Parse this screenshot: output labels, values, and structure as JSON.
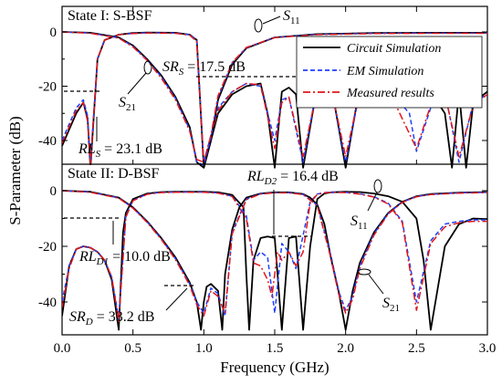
{
  "chart_data": {
    "type": "line",
    "xlabel": "Frequency (GHz)",
    "ylabel": "S-Parameter (dB)",
    "xlim": [
      0.0,
      3.0
    ],
    "xticks": [
      "0.0",
      "0.5",
      "1.0",
      "1.5",
      "2.0",
      "2.5",
      "3.0"
    ],
    "legend": {
      "placement": "top-right of upper panel",
      "entries": [
        {
          "label": "Circuit Simulation",
          "color": "#000000",
          "style": "solid"
        },
        {
          "label": "EM Simulation",
          "color": "#1f3fff",
          "style": "dashed"
        },
        {
          "label": "Measured results",
          "color": "#e0161b",
          "style": "dashdot"
        }
      ]
    },
    "panels": [
      {
        "title": "State I: S-BSF",
        "ylim": [
          -50,
          5
        ],
        "yticks": [
          "0",
          "-20",
          "-40"
        ],
        "annotations": [
          {
            "sym": "S",
            "sub": "11",
            "suffix": ""
          },
          {
            "sym": "S",
            "sub": "21",
            "suffix": ""
          },
          {
            "sym": "SR",
            "sub": "S",
            "suffix": " = 17.5 dB"
          },
          {
            "sym": "RL",
            "sub": "S",
            "suffix": " = 23.1 dB"
          }
        ],
        "series": [
          {
            "curve": "S11",
            "name": "Circuit Simulation",
            "x": [
              0.0,
              0.1,
              0.15,
              0.18,
              0.2,
              0.25,
              0.3,
              0.4,
              0.5,
              0.6,
              0.8,
              0.9,
              0.95,
              1.0,
              1.1,
              1.2,
              1.3,
              1.4,
              1.45,
              1.5,
              1.55,
              1.6,
              1.65,
              1.7,
              1.8,
              1.9,
              1.95,
              2.0,
              2.1,
              2.3,
              2.5,
              2.6,
              2.7,
              2.75,
              2.8,
              2.85,
              2.9,
              3.0
            ],
            "y": [
              -42,
              -30,
              -26,
              -32,
              -50,
              -10,
              -3,
              -1,
              -0.4,
              -0.2,
              -0.3,
              -1,
              -3,
              -50,
              -30,
              -23,
              -20,
              -19,
              -30,
              -50,
              -22,
              -20.5,
              -23,
              -50,
              -20,
              -20,
              -35,
              -50,
              -20,
              -20,
              -21,
              -22,
              -30,
              -50,
              -22,
              -50,
              -26,
              -22
            ]
          },
          {
            "curve": "S11",
            "name": "EM Simulation",
            "x": [
              0.0,
              0.1,
              0.15,
              0.18,
              0.2,
              0.25,
              0.3,
              0.4,
              0.5,
              0.6,
              0.8,
              0.9,
              0.95,
              1.0,
              1.1,
              1.2,
              1.3,
              1.4,
              1.5,
              1.55,
              1.6,
              1.7,
              1.8,
              1.9,
              2.0,
              2.1,
              2.3,
              2.45,
              2.5,
              2.6,
              2.7,
              2.8,
              2.9,
              3.0
            ],
            "y": [
              -40,
              -28,
              -25,
              -31,
              -48,
              -10,
              -3,
              -1,
              -0.5,
              -0.3,
              -0.4,
              -1,
              -3,
              -48,
              -28,
              -22,
              -19,
              -20,
              -40,
              -25,
              -24,
              -48,
              -20,
              -21,
              -48,
              -22,
              -21,
              -30,
              -44,
              -28,
              -22,
              -48,
              -26,
              -23
            ]
          },
          {
            "curve": "S11",
            "name": "Measured results",
            "x": [
              0.0,
              0.1,
              0.15,
              0.18,
              0.2,
              0.25,
              0.3,
              0.4,
              0.5,
              0.6,
              0.8,
              0.9,
              0.95,
              1.0,
              1.1,
              1.2,
              1.3,
              1.4,
              1.5,
              1.55,
              1.6,
              1.7,
              1.8,
              1.9,
              2.0,
              2.1,
              2.3,
              2.5,
              2.6,
              2.7,
              2.8,
              2.9,
              3.0
            ],
            "y": [
              -41,
              -29,
              -26,
              -33,
              -49,
              -10,
              -3,
              -1,
              -0.6,
              -0.4,
              -0.5,
              -1.2,
              -3.5,
              -49,
              -29,
              -22,
              -19,
              -19.5,
              -43,
              -26,
              -24,
              -46,
              -21,
              -21,
              -46,
              -22,
              -21,
              -43,
              -27,
              -23,
              -46,
              -27,
              -23
            ]
          },
          {
            "curve": "S21",
            "name": "Circuit Simulation",
            "x": [
              0.0,
              0.2,
              0.4,
              0.5,
              0.6,
              0.7,
              0.8,
              0.9,
              0.95,
              1.0,
              1.05,
              1.1,
              1.2,
              1.3,
              1.5,
              1.8,
              2.2,
              2.6,
              3.0
            ],
            "y": [
              0,
              -0.3,
              -2,
              -5,
              -10,
              -16,
              -24,
              -35,
              -48,
              -50,
              -40,
              -25,
              -12,
              -6,
              -2,
              -0.8,
              -0.4,
              -0.3,
              -0.3
            ]
          },
          {
            "curve": "S21",
            "name": "EM Simulation",
            "x": [
              0.0,
              0.2,
              0.4,
              0.5,
              0.6,
              0.7,
              0.8,
              0.9,
              0.95,
              1.0,
              1.05,
              1.1,
              1.2,
              1.3,
              1.5,
              1.8,
              2.2,
              2.6,
              3.0
            ],
            "y": [
              0,
              -0.4,
              -2.2,
              -5.3,
              -10.3,
              -16.5,
              -24.5,
              -36,
              -48,
              -49,
              -39,
              -24,
              -11.5,
              -5.8,
              -2,
              -0.9,
              -0.5,
              -0.4,
              -0.4
            ]
          },
          {
            "curve": "S21",
            "name": "Measured results",
            "x": [
              0.0,
              0.2,
              0.4,
              0.5,
              0.6,
              0.7,
              0.8,
              0.9,
              0.95,
              1.0,
              1.05,
              1.1,
              1.2,
              1.3,
              1.5,
              1.8,
              2.2,
              2.6,
              3.0
            ],
            "y": [
              0,
              -0.5,
              -2.3,
              -5.5,
              -10.5,
              -17,
              -25,
              -36.5,
              -47,
              -48,
              -38,
              -23.5,
              -11.3,
              -5.7,
              -2.1,
              -1,
              -0.6,
              -0.5,
              -0.5
            ]
          }
        ]
      },
      {
        "title": "State II: D-BSF",
        "ylim": [
          -50,
          5
        ],
        "yticks": [
          "0",
          "-20",
          "-40"
        ],
        "annotations": [
          {
            "sym": "RL",
            "sub": "D2",
            "suffix": " = 16.4 dB"
          },
          {
            "sym": "S",
            "sub": "11",
            "suffix": ""
          },
          {
            "sym": "RL",
            "sub": "D1",
            "suffix": " = 10.0 dB"
          },
          {
            "sym": "S",
            "sub": "21",
            "suffix": ""
          },
          {
            "sym": "SR",
            "sub": "D",
            "suffix": " = 33.2 dB"
          }
        ],
        "series": [
          {
            "curve": "S11",
            "name": "Circuit Simulation",
            "x": [
              0.0,
              0.05,
              0.1,
              0.15,
              0.2,
              0.25,
              0.3,
              0.35,
              0.4,
              0.43,
              0.45,
              0.5,
              0.6,
              0.7,
              0.8,
              0.9,
              1.0,
              1.1,
              1.2,
              1.28,
              1.3,
              1.32,
              1.35,
              1.4,
              1.45,
              1.5,
              1.55,
              1.6,
              1.65,
              1.7,
              1.75,
              1.8,
              1.85,
              1.9,
              2.0,
              2.1,
              2.2,
              2.3,
              2.4,
              2.5,
              2.55,
              2.6,
              2.7,
              2.8,
              2.9,
              3.0
            ],
            "y": [
              -45,
              -27,
              -21,
              -20,
              -20.5,
              -22,
              -25,
              -32,
              -50,
              -15,
              -8,
              -3,
              -1,
              -0.5,
              -0.4,
              -0.4,
              -0.4,
              -0.6,
              -1.5,
              -6,
              -30,
              -50,
              -25,
              -17,
              -16.5,
              -17,
              -50,
              -17,
              -16.5,
              -50,
              -20,
              -3,
              -1,
              -0.6,
              -0.4,
              -0.5,
              -1,
              -2,
              -4,
              -10,
              -25,
              -50,
              -20,
              -12,
              -10,
              -10.2
            ]
          },
          {
            "curve": "S11",
            "name": "EM Simulation",
            "x": [
              0.0,
              0.05,
              0.1,
              0.15,
              0.2,
              0.25,
              0.3,
              0.35,
              0.4,
              0.45,
              0.5,
              0.6,
              0.7,
              0.8,
              0.9,
              1.0,
              1.1,
              1.2,
              1.3,
              1.35,
              1.4,
              1.45,
              1.5,
              1.55,
              1.6,
              1.65,
              1.7,
              1.75,
              1.8,
              1.85,
              1.9,
              2.0,
              2.1,
              2.2,
              2.3,
              2.4,
              2.5,
              2.6,
              2.7,
              2.8,
              2.9,
              3.0
            ],
            "y": [
              -40,
              -27,
              -21,
              -20,
              -20.5,
              -22,
              -25,
              -31,
              -46,
              -9,
              -3.5,
              -1.2,
              -0.6,
              -0.5,
              -0.5,
              -0.5,
              -0.8,
              -2,
              -9,
              -25,
              -22,
              -24,
              -44,
              -19,
              -22,
              -28,
              -16,
              -4,
              -1.2,
              -0.7,
              -0.5,
              -0.6,
              -1.1,
              -2.2,
              -4.5,
              -11,
              -40,
              -18,
              -12,
              -11,
              -10.5,
              -10.5
            ]
          },
          {
            "curve": "S11",
            "name": "Measured results",
            "x": [
              0.0,
              0.05,
              0.1,
              0.15,
              0.2,
              0.25,
              0.3,
              0.35,
              0.4,
              0.45,
              0.5,
              0.6,
              0.7,
              0.8,
              0.9,
              1.0,
              1.1,
              1.2,
              1.3,
              1.35,
              1.4,
              1.45,
              1.48,
              1.52,
              1.55,
              1.6,
              1.65,
              1.7,
              1.75,
              1.8,
              1.85,
              1.9,
              2.0,
              2.1,
              2.2,
              2.3,
              2.4,
              2.5,
              2.6,
              2.7,
              2.8,
              2.9,
              3.0
            ],
            "y": [
              -42,
              -28,
              -21,
              -20,
              -20.5,
              -22,
              -25,
              -31,
              -47,
              -9.5,
              -3.6,
              -1.3,
              -0.7,
              -0.6,
              -0.6,
              -0.6,
              -0.9,
              -2.1,
              -10,
              -26,
              -27,
              -32,
              -38,
              -22,
              -25,
              -22,
              -27,
              -22,
              -4.5,
              -1.3,
              -0.8,
              -0.6,
              -0.7,
              -1.2,
              -2.3,
              -4.8,
              -11.5,
              -43,
              -19,
              -13,
              -11.5,
              -11,
              -11
            ]
          },
          {
            "curve": "S21",
            "name": "Circuit Simulation",
            "x": [
              0.0,
              0.2,
              0.4,
              0.5,
              0.6,
              0.7,
              0.8,
              0.9,
              0.95,
              0.98,
              1.0,
              1.02,
              1.05,
              1.1,
              1.13,
              1.15,
              1.2,
              1.25,
              1.3,
              1.4,
              1.5,
              1.6,
              1.7,
              1.75,
              1.8,
              1.85,
              1.9,
              1.95,
              2.0,
              2.05,
              2.1,
              2.2,
              2.3,
              2.4,
              2.5,
              2.6,
              2.8,
              3.0
            ],
            "y": [
              0,
              -0.4,
              -2.5,
              -6,
              -11,
              -17,
              -24,
              -33,
              -40,
              -50,
              -40,
              -34.5,
              -33.5,
              -36,
              -50,
              -30,
              -14,
              -6,
              -2.5,
              -1,
              -0.6,
              -0.6,
              -1.2,
              -2.5,
              -5,
              -12,
              -25,
              -36,
              -50,
              -36,
              -26,
              -15,
              -8,
              -4,
              -2,
              -1.2,
              -0.7,
              -0.5
            ]
          },
          {
            "curve": "S21",
            "name": "EM Simulation",
            "x": [
              0.0,
              0.2,
              0.4,
              0.5,
              0.6,
              0.7,
              0.8,
              0.9,
              0.95,
              1.0,
              1.05,
              1.1,
              1.15,
              1.2,
              1.3,
              1.4,
              1.5,
              1.6,
              1.7,
              1.8,
              1.9,
              1.95,
              2.0,
              2.05,
              2.1,
              2.2,
              2.3,
              2.4,
              2.5,
              2.6,
              2.8,
              3.0
            ],
            "y": [
              0,
              -0.5,
              -2.6,
              -6.2,
              -11.2,
              -17.3,
              -24.5,
              -33.5,
              -40,
              -44,
              -35,
              -37,
              -45,
              -15,
              -3,
              -1.1,
              -0.7,
              -0.7,
              -1.3,
              -5.2,
              -24,
              -36,
              -43,
              -38,
              -27,
              -15.5,
              -8.2,
              -4.1,
              -2.1,
              -1.3,
              -0.8,
              -0.6
            ]
          },
          {
            "curve": "S21",
            "name": "Measured results",
            "x": [
              0.0,
              0.2,
              0.4,
              0.5,
              0.6,
              0.7,
              0.8,
              0.9,
              0.95,
              1.0,
              1.05,
              1.1,
              1.15,
              1.2,
              1.3,
              1.4,
              1.5,
              1.6,
              1.7,
              1.8,
              1.9,
              1.95,
              2.0,
              2.05,
              2.1,
              2.2,
              2.3,
              2.4,
              2.5,
              2.6,
              2.8,
              3.0
            ],
            "y": [
              0,
              -0.6,
              -2.7,
              -6.3,
              -11.4,
              -17.5,
              -24.8,
              -34,
              -41,
              -45,
              -36,
              -38,
              -44,
              -15.5,
              -3.2,
              -1.2,
              -0.8,
              -0.8,
              -1.4,
              -5.4,
              -25,
              -37,
              -44,
              -39,
              -28,
              -16,
              -8.4,
              -4.2,
              -2.2,
              -1.4,
              -0.9,
              -0.7
            ]
          }
        ]
      }
    ]
  }
}
